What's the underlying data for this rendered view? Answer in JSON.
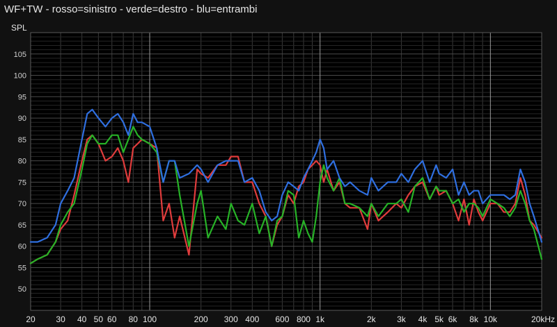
{
  "title": "WF+TW - rosso=sinistro - verde=destro - blu=entrambi",
  "chart_data": {
    "type": "line",
    "title": "WF+TW - rosso=sinistro - verde=destro - blu=entrambi",
    "ylabel": "SPL",
    "xlabel": "",
    "xscale": "log",
    "xlim": [
      20,
      20000
    ],
    "ylim": [
      45,
      110
    ],
    "grid": true,
    "background": "#000000",
    "xticks": [
      {
        "value": 20,
        "label": "20"
      },
      {
        "value": 30,
        "label": "30"
      },
      {
        "value": 40,
        "label": "40"
      },
      {
        "value": 50,
        "label": "50"
      },
      {
        "value": 60,
        "label": "60"
      },
      {
        "value": 80,
        "label": "80"
      },
      {
        "value": 100,
        "label": "100"
      },
      {
        "value": 200,
        "label": "200"
      },
      {
        "value": 300,
        "label": "300"
      },
      {
        "value": 400,
        "label": "400"
      },
      {
        "value": 600,
        "label": "600"
      },
      {
        "value": 800,
        "label": "800"
      },
      {
        "value": 1000,
        "label": "1k"
      },
      {
        "value": 2000,
        "label": "2k"
      },
      {
        "value": 3000,
        "label": "3k"
      },
      {
        "value": 4000,
        "label": "4k"
      },
      {
        "value": 5000,
        "label": "5k"
      },
      {
        "value": 6000,
        "label": "6k"
      },
      {
        "value": 8000,
        "label": "8k"
      },
      {
        "value": 10000,
        "label": "10k"
      },
      {
        "value": 20000,
        "label": "20kHz"
      }
    ],
    "yticks": [
      50,
      55,
      60,
      65,
      70,
      75,
      80,
      85,
      90,
      95,
      100,
      105
    ],
    "series": [
      {
        "color": "#e03c3c",
        "x": [
          20,
          22,
          25,
          28,
          30,
          33,
          36,
          40,
          43,
          46,
          50,
          55,
          60,
          65,
          70,
          75,
          80,
          85,
          90,
          100,
          110,
          120,
          130,
          140,
          150,
          170,
          190,
          200,
          220,
          250,
          280,
          300,
          330,
          360,
          400,
          440,
          480,
          520,
          560,
          600,
          650,
          700,
          750,
          800,
          850,
          900,
          950,
          1000,
          1050,
          1100,
          1200,
          1300,
          1400,
          1500,
          1700,
          1900,
          2000,
          2200,
          2500,
          2800,
          3000,
          3300,
          3600,
          4000,
          4400,
          4800,
          5000,
          5500,
          6000,
          6500,
          7000,
          7500,
          8000,
          8500,
          9000,
          10000,
          11000,
          12000,
          13000,
          14000,
          15000,
          16000,
          17000,
          18000,
          20000
        ],
        "y": [
          56,
          57,
          58,
          61,
          64,
          66,
          72,
          80,
          85,
          86,
          84,
          80,
          81,
          83,
          80,
          75,
          83,
          84,
          85,
          84,
          83,
          66,
          70,
          62,
          67,
          58,
          78,
          77,
          76,
          79,
          79,
          81,
          81,
          75,
          75,
          70,
          67,
          60,
          65,
          67,
          72,
          70,
          74,
          75,
          78,
          79,
          80,
          79,
          75,
          78,
          73,
          75,
          70,
          69,
          69,
          64,
          70,
          66,
          68,
          70,
          69,
          72,
          74,
          75,
          71,
          74,
          72,
          73,
          70,
          66,
          71,
          65,
          71,
          68,
          66,
          70,
          70,
          68,
          68,
          70,
          76,
          72,
          66,
          65,
          62
        ]
      },
      {
        "color": "#27b327",
        "x": [
          20,
          22,
          25,
          28,
          30,
          33,
          36,
          40,
          43,
          46,
          50,
          55,
          60,
          65,
          70,
          75,
          80,
          85,
          90,
          100,
          110,
          120,
          130,
          140,
          150,
          170,
          190,
          200,
          220,
          250,
          280,
          300,
          330,
          360,
          400,
          440,
          480,
          520,
          560,
          600,
          650,
          700,
          750,
          800,
          850,
          900,
          950,
          1000,
          1050,
          1100,
          1200,
          1300,
          1400,
          1500,
          1700,
          1900,
          2000,
          2200,
          2500,
          2800,
          3000,
          3300,
          3600,
          4000,
          4400,
          4800,
          5000,
          5500,
          6000,
          6500,
          7000,
          7500,
          8000,
          8500,
          9000,
          10000,
          11000,
          12000,
          13000,
          14000,
          15000,
          16000,
          17000,
          18000,
          20000
        ],
        "y": [
          56,
          57,
          58,
          61,
          65,
          68,
          70,
          78,
          84,
          86,
          84,
          84,
          86,
          86,
          82,
          85,
          88,
          86,
          85,
          84,
          82,
          75,
          80,
          80,
          72,
          60,
          70,
          73,
          62,
          67,
          64,
          70,
          66,
          65,
          70,
          63,
          67,
          60,
          66,
          67,
          73,
          72,
          62,
          66,
          63,
          61,
          67,
          75,
          79,
          76,
          73,
          76,
          70,
          70,
          69,
          67,
          70,
          67,
          70,
          70,
          71,
          68,
          74,
          76,
          71,
          74,
          73,
          73,
          70,
          71,
          68,
          70,
          70,
          69,
          67,
          71,
          70,
          69,
          67,
          69,
          73,
          70,
          66,
          64,
          57
        ]
      },
      {
        "color": "#2f6fe0",
        "x": [
          20,
          22,
          25,
          28,
          30,
          33,
          36,
          40,
          43,
          46,
          50,
          55,
          60,
          65,
          70,
          75,
          80,
          85,
          90,
          100,
          110,
          120,
          130,
          140,
          150,
          170,
          190,
          200,
          220,
          250,
          280,
          300,
          330,
          360,
          400,
          440,
          480,
          520,
          560,
          600,
          650,
          700,
          750,
          800,
          850,
          900,
          950,
          1000,
          1050,
          1100,
          1200,
          1300,
          1400,
          1500,
          1700,
          1900,
          2000,
          2200,
          2500,
          2800,
          3000,
          3300,
          3600,
          4000,
          4400,
          4800,
          5000,
          5500,
          6000,
          6500,
          7000,
          7500,
          8000,
          8500,
          9000,
          10000,
          11000,
          12000,
          13000,
          14000,
          15000,
          16000,
          17000,
          18000,
          20000
        ],
        "y": [
          61,
          61,
          62,
          65,
          70,
          73,
          76,
          85,
          91,
          92,
          90,
          88,
          90,
          91,
          89,
          86,
          91,
          89,
          89,
          88,
          83,
          75,
          80,
          80,
          76,
          77,
          79,
          78,
          75,
          79,
          80,
          80,
          80,
          75,
          76,
          73,
          68,
          66,
          67,
          72,
          75,
          74,
          73,
          76,
          78,
          80,
          82,
          85,
          83,
          78,
          80,
          76,
          74,
          75,
          73,
          72,
          76,
          73,
          75,
          75,
          77,
          75,
          78,
          80,
          75,
          79,
          77,
          76,
          78,
          72,
          75,
          72,
          73,
          73,
          70,
          72,
          72,
          72,
          71,
          72,
          78,
          75,
          70,
          67,
          61
        ]
      }
    ]
  }
}
